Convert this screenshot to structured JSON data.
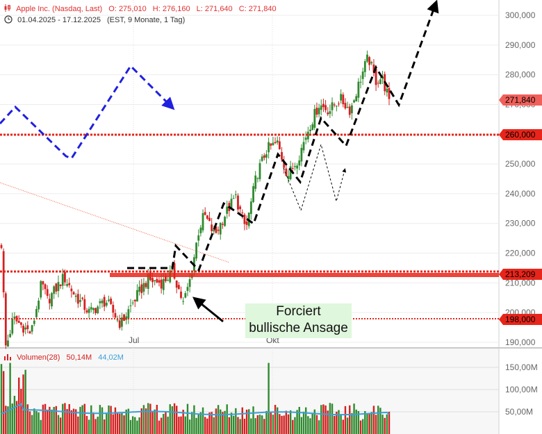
{
  "header": {
    "instrument": "Apple Inc. (Nasdaq, Last)",
    "open_label": "O:",
    "open": "275,010",
    "high_label": "H:",
    "high": "276,160",
    "low_label": "L:",
    "low": "271,640",
    "close_label": "C:",
    "close": "271,840",
    "period": "01.04.2025 - 17.12.2025",
    "period_info": "(EST, 9 Monate, 1 Tag)"
  },
  "volume_legend": {
    "label": "Volumen(28)",
    "volume": "50,14M",
    "average": "44,02M"
  },
  "annotation": {
    "line1": "Forciert",
    "line2": "bullische Ansage"
  },
  "colors": {
    "up": "#2f8a2f",
    "down": "#d42020",
    "price_label": "#e0302a",
    "support_line": "#e8251a",
    "forecast_blue": "#2020e0",
    "forecast_black": "#000000",
    "volume_avg": "#3aa0d8"
  },
  "chart_data": {
    "type": "candlestick",
    "title": "Apple Inc. (Nasdaq, Last)",
    "x_ticks": [
      "Jul",
      "Okt"
    ],
    "y_ticks": [
      "190,000",
      "200,000",
      "210,000",
      "220,000",
      "230,000",
      "240,000",
      "250,000",
      "260,000",
      "270,000",
      "280,000",
      "290,000",
      "300,000"
    ],
    "ylim": [
      187,
      304
    ],
    "last_price": {
      "label": "271,840",
      "value": 271.84
    },
    "horizontal_levels": [
      {
        "label": "260,000",
        "value": 260.0
      },
      {
        "label": "213,209",
        "value": 213.209
      },
      {
        "label": "198,000",
        "value": 198.0
      }
    ],
    "series_close_path": [
      {
        "date": "2025-04-01",
        "close": 223
      },
      {
        "date": "2025-04-04",
        "close": 188
      },
      {
        "date": "2025-04-09",
        "close": 198
      },
      {
        "date": "2025-04-21",
        "close": 193
      },
      {
        "date": "2025-04-28",
        "close": 210
      },
      {
        "date": "2025-05-02",
        "close": 204
      },
      {
        "date": "2025-05-13",
        "close": 212
      },
      {
        "date": "2025-05-20",
        "close": 206
      },
      {
        "date": "2025-05-30",
        "close": 200
      },
      {
        "date": "2025-06-10",
        "close": 204
      },
      {
        "date": "2025-06-20",
        "close": 196
      },
      {
        "date": "2025-06-30",
        "close": 205
      },
      {
        "date": "2025-07-08",
        "close": 211
      },
      {
        "date": "2025-07-18",
        "close": 210
      },
      {
        "date": "2025-07-25",
        "close": 214
      },
      {
        "date": "2025-08-01",
        "close": 203
      },
      {
        "date": "2025-08-06",
        "close": 212
      },
      {
        "date": "2025-08-11",
        "close": 227
      },
      {
        "date": "2025-08-15",
        "close": 233
      },
      {
        "date": "2025-08-22",
        "close": 226
      },
      {
        "date": "2025-08-29",
        "close": 233
      },
      {
        "date": "2025-09-05",
        "close": 239
      },
      {
        "date": "2025-09-12",
        "close": 228
      },
      {
        "date": "2025-09-19",
        "close": 246
      },
      {
        "date": "2025-09-26",
        "close": 255
      },
      {
        "date": "2025-10-03",
        "close": 257
      },
      {
        "date": "2025-10-10",
        "close": 246
      },
      {
        "date": "2025-10-17",
        "close": 252
      },
      {
        "date": "2025-10-24",
        "close": 262
      },
      {
        "date": "2025-10-31",
        "close": 270
      },
      {
        "date": "2025-11-07",
        "close": 268
      },
      {
        "date": "2025-11-14",
        "close": 272
      },
      {
        "date": "2025-11-21",
        "close": 268
      },
      {
        "date": "2025-11-28",
        "close": 279
      },
      {
        "date": "2025-12-03",
        "close": 286
      },
      {
        "date": "2025-12-08",
        "close": 278
      },
      {
        "date": "2025-12-12",
        "close": 279
      },
      {
        "date": "2025-12-17",
        "close": 271.84
      }
    ],
    "volume": {
      "title": "Volumen(28)",
      "y_ticks": [
        "50,00M",
        "100,00M",
        "150,00M"
      ],
      "ylim": [
        0,
        200
      ],
      "average_28": 44.02,
      "last": 50.14
    }
  }
}
